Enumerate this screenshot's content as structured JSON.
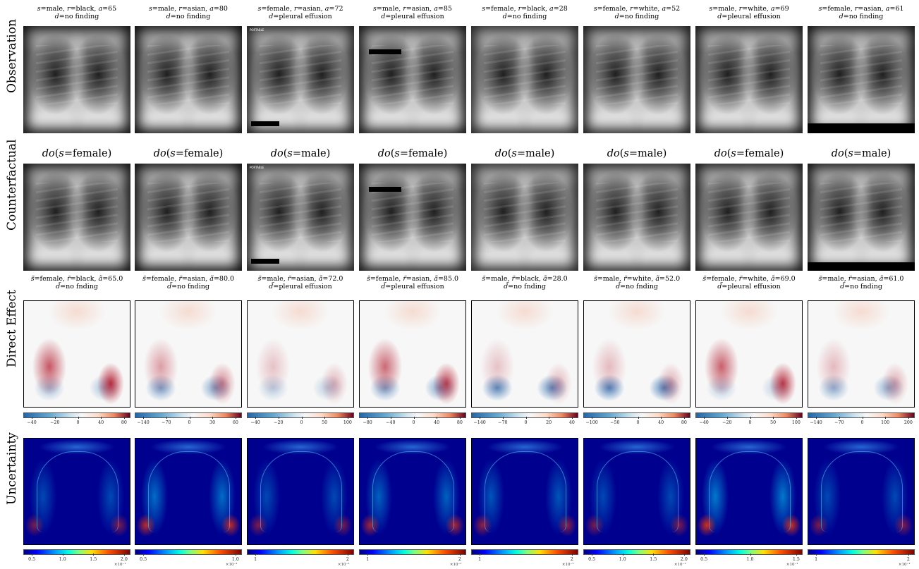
{
  "row_labels": [
    "Observation",
    "Counterfactual",
    "Direct Effect",
    "Uncertainty"
  ],
  "columns": [
    {
      "obs": {
        "s": "male",
        "r": "black",
        "a": "65",
        "d": "no finding"
      },
      "intervention": "female",
      "cf": {
        "s": "female",
        "r": "black",
        "a": "65.0",
        "d": "no fnding"
      },
      "de_ticks": [
        "−40",
        "−20",
        "0",
        "40",
        "80"
      ],
      "un_ticks": [
        "0.5",
        "1.0",
        "1.5",
        "2.0"
      ],
      "un_exp": "×10⁻¹"
    },
    {
      "obs": {
        "s": "male",
        "r": "asian",
        "a": "80",
        "d": "no finding"
      },
      "intervention": "female",
      "cf": {
        "s": "female",
        "r": "asian",
        "a": "80.0",
        "d": "no fnding"
      },
      "de_ticks": [
        "−140",
        "−70",
        "0",
        "30",
        "60"
      ],
      "un_ticks": [
        "0.5",
        "1.0"
      ],
      "un_exp": "×10⁻¹"
    },
    {
      "obs": {
        "s": "female",
        "r": "asian",
        "a": "72",
        "d": "pleural effusion"
      },
      "intervention": "male",
      "cf": {
        "s": "male",
        "r": "asian",
        "a": "72.0",
        "d": "pleural effusion"
      },
      "de_ticks": [
        "−40",
        "−20",
        "0",
        "50",
        "100"
      ],
      "un_ticks": [
        "1",
        "2"
      ],
      "un_exp": "×10⁻¹"
    },
    {
      "obs": {
        "s": "male",
        "r": "asian",
        "a": "85",
        "d": "pleural effusion"
      },
      "intervention": "female",
      "cf": {
        "s": "female",
        "r": "asian",
        "a": "85.0",
        "d": "pleural effusion"
      },
      "de_ticks": [
        "−80",
        "−40",
        "0",
        "40",
        "80"
      ],
      "un_ticks": [
        "1",
        "2"
      ],
      "un_exp": "×10⁻¹"
    },
    {
      "obs": {
        "s": "female",
        "r": "black",
        "a": "28",
        "d": "no finding"
      },
      "intervention": "male",
      "cf": {
        "s": "male",
        "r": "black",
        "a": "28.0",
        "d": "no fnding"
      },
      "de_ticks": [
        "−140",
        "−70",
        "0",
        "20",
        "40"
      ],
      "un_ticks": [
        "1",
        "2"
      ],
      "un_exp": "×10⁻¹"
    },
    {
      "obs": {
        "s": "female",
        "r": "white",
        "a": "52",
        "d": "no finding"
      },
      "intervention": "male",
      "cf": {
        "s": "male",
        "r": "white",
        "a": "52.0",
        "d": "no fnding"
      },
      "de_ticks": [
        "−100",
        "−50",
        "0",
        "40",
        "80"
      ],
      "un_ticks": [
        "0.5",
        "1.0",
        "1.5",
        "2.0"
      ],
      "un_exp": "×10⁻¹"
    },
    {
      "obs": {
        "s": "male",
        "r": "white",
        "a": "69",
        "d": "pleural effusion"
      },
      "intervention": "female",
      "cf": {
        "s": "female",
        "r": "white",
        "a": "69.0",
        "d": "pleural effusion"
      },
      "de_ticks": [
        "−40",
        "−20",
        "0",
        "50",
        "100"
      ],
      "un_ticks": [
        "0.5",
        "1.0",
        "1.5"
      ],
      "un_exp": "×10⁻¹"
    },
    {
      "obs": {
        "s": "female",
        "r": "asian",
        "a": "61",
        "d": "no finding"
      },
      "intervention": "male",
      "cf": {
        "s": "male",
        "r": "asian",
        "a": "61.0",
        "d": "no fnding"
      },
      "de_ticks": [
        "−140",
        "−70",
        "0",
        "100",
        "200"
      ],
      "un_ticks": [
        "1",
        "2"
      ],
      "un_exp": "×10⁻¹"
    }
  ],
  "colors": {
    "xray_dark": "#111111",
    "xray_light": "#e8e8e8",
    "diverging_neg": "#2166ac",
    "diverging_pos": "#b2182b",
    "jet_low": "#00007f",
    "jet_high": "#7f0000"
  }
}
